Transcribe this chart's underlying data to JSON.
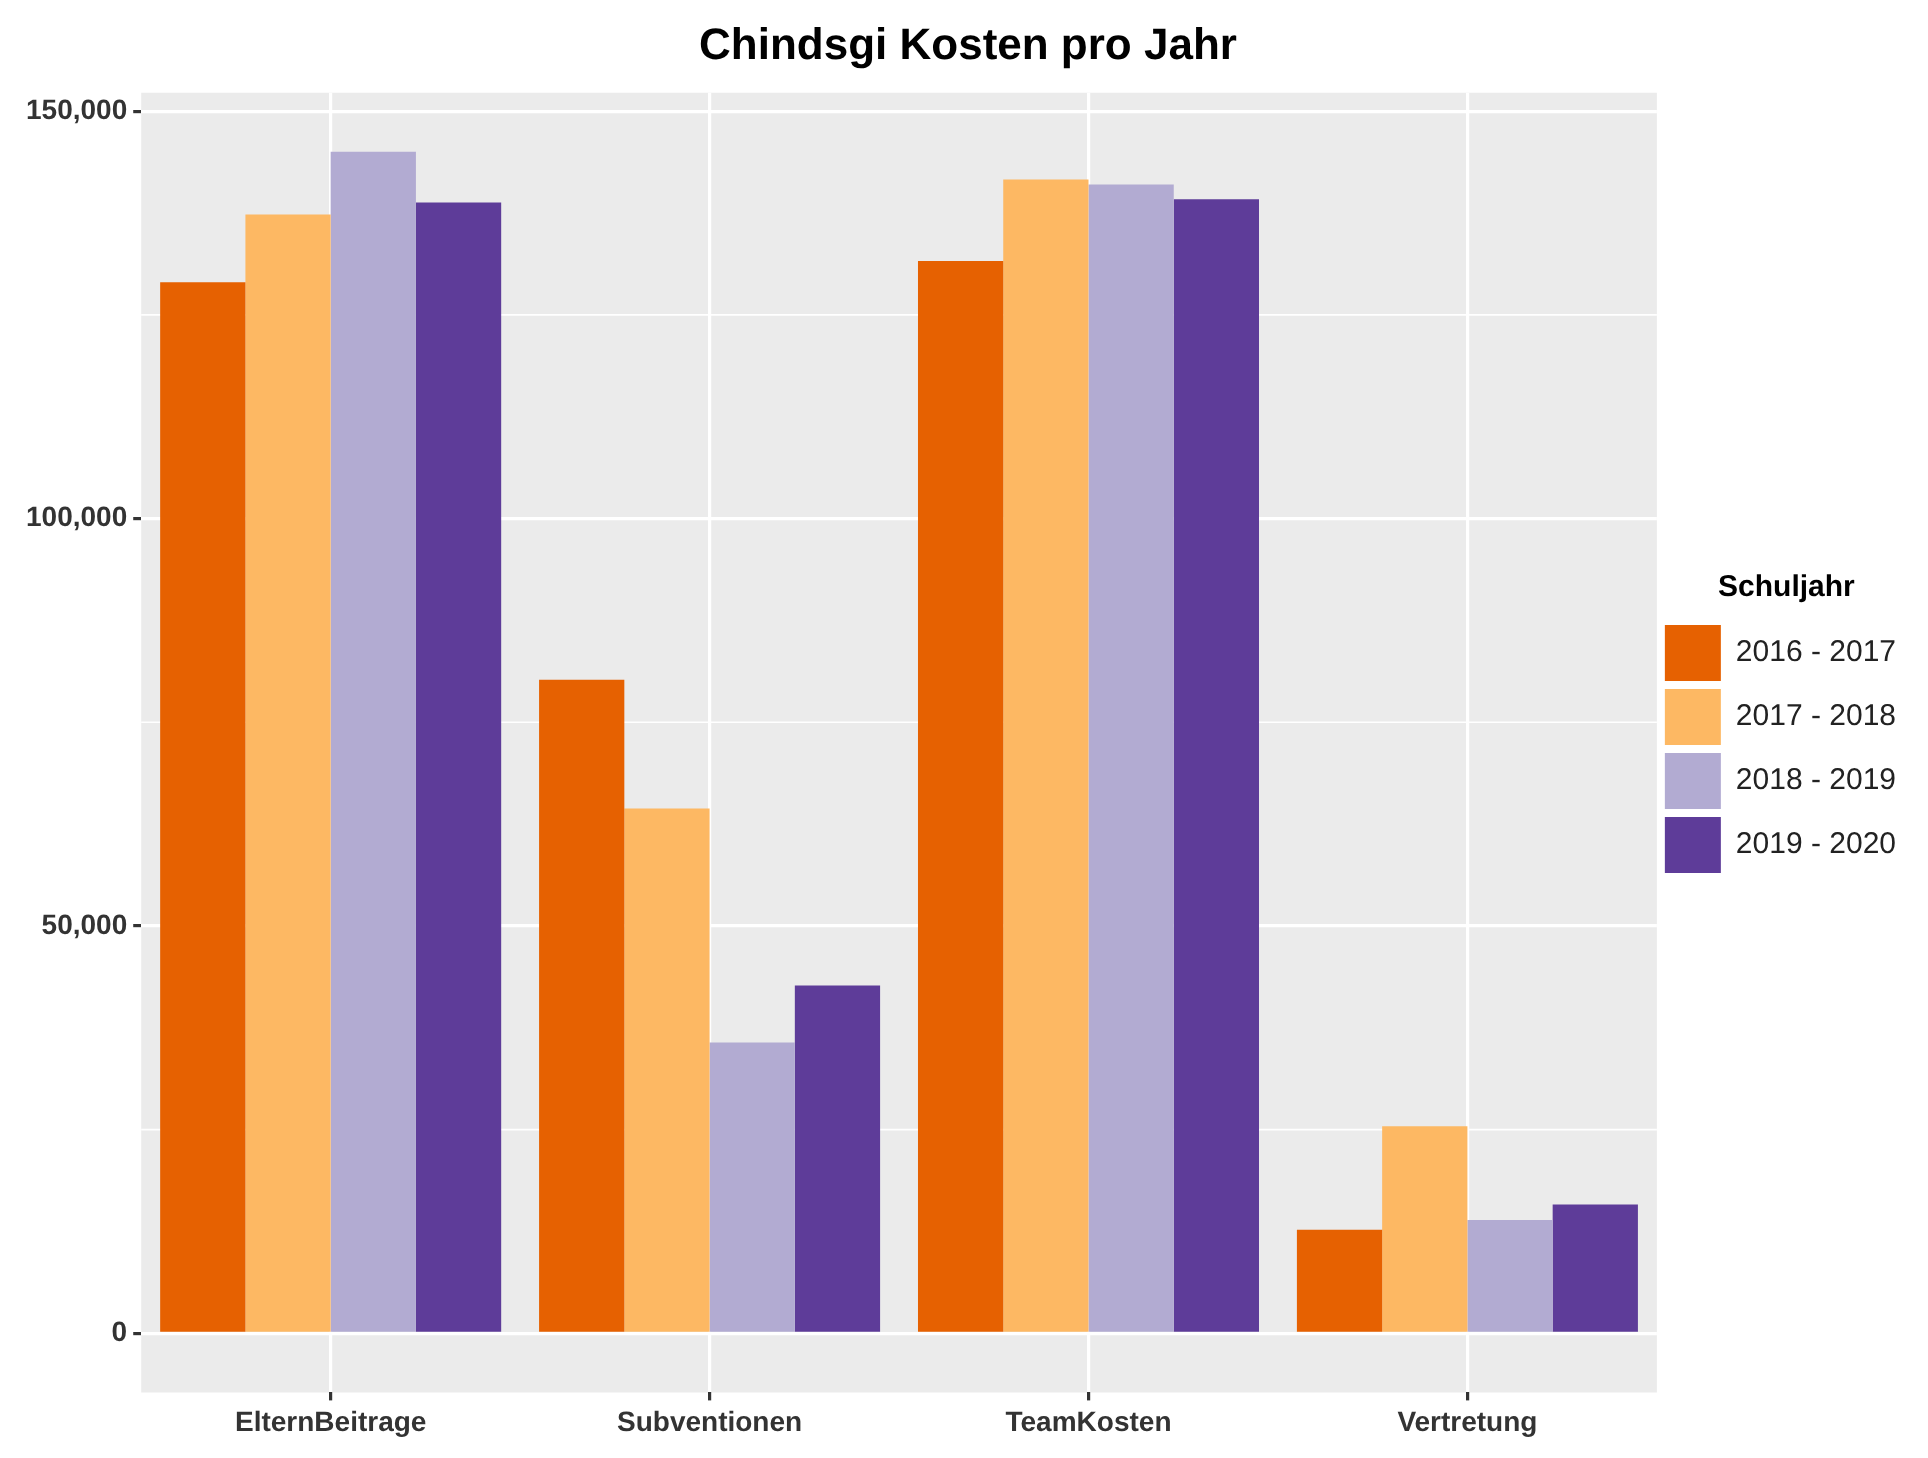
{
  "chart_data": {
    "type": "bar",
    "title": "Chindsgi Kosten pro Jahr",
    "legend_title": "Schuljahr",
    "categories": [
      "ElternBeitrage",
      "Subventionen",
      "TeamKosten",
      "Vertretung"
    ],
    "series": [
      {
        "name": "2016 - 2017",
        "color": "#e66101",
        "values": [
          129000,
          80200,
          131600,
          12700
        ]
      },
      {
        "name": "2017 - 2018",
        "color": "#fdb863",
        "values": [
          137300,
          64400,
          141600,
          25400
        ]
      },
      {
        "name": "2018 - 2019",
        "color": "#b2abd2",
        "values": [
          145000,
          35700,
          141000,
          13900
        ]
      },
      {
        "name": "2019 - 2020",
        "color": "#5e3c99",
        "values": [
          138800,
          42700,
          139200,
          15800
        ]
      }
    ],
    "ylim": [
      -7250,
      152250
    ],
    "yticks": [
      {
        "value": 0,
        "label": "0"
      },
      {
        "value": 50000,
        "label": "50,000"
      },
      {
        "value": 100000,
        "label": "100,000"
      },
      {
        "value": 150000,
        "label": "150,000"
      }
    ],
    "grid": true,
    "legend": "right"
  }
}
